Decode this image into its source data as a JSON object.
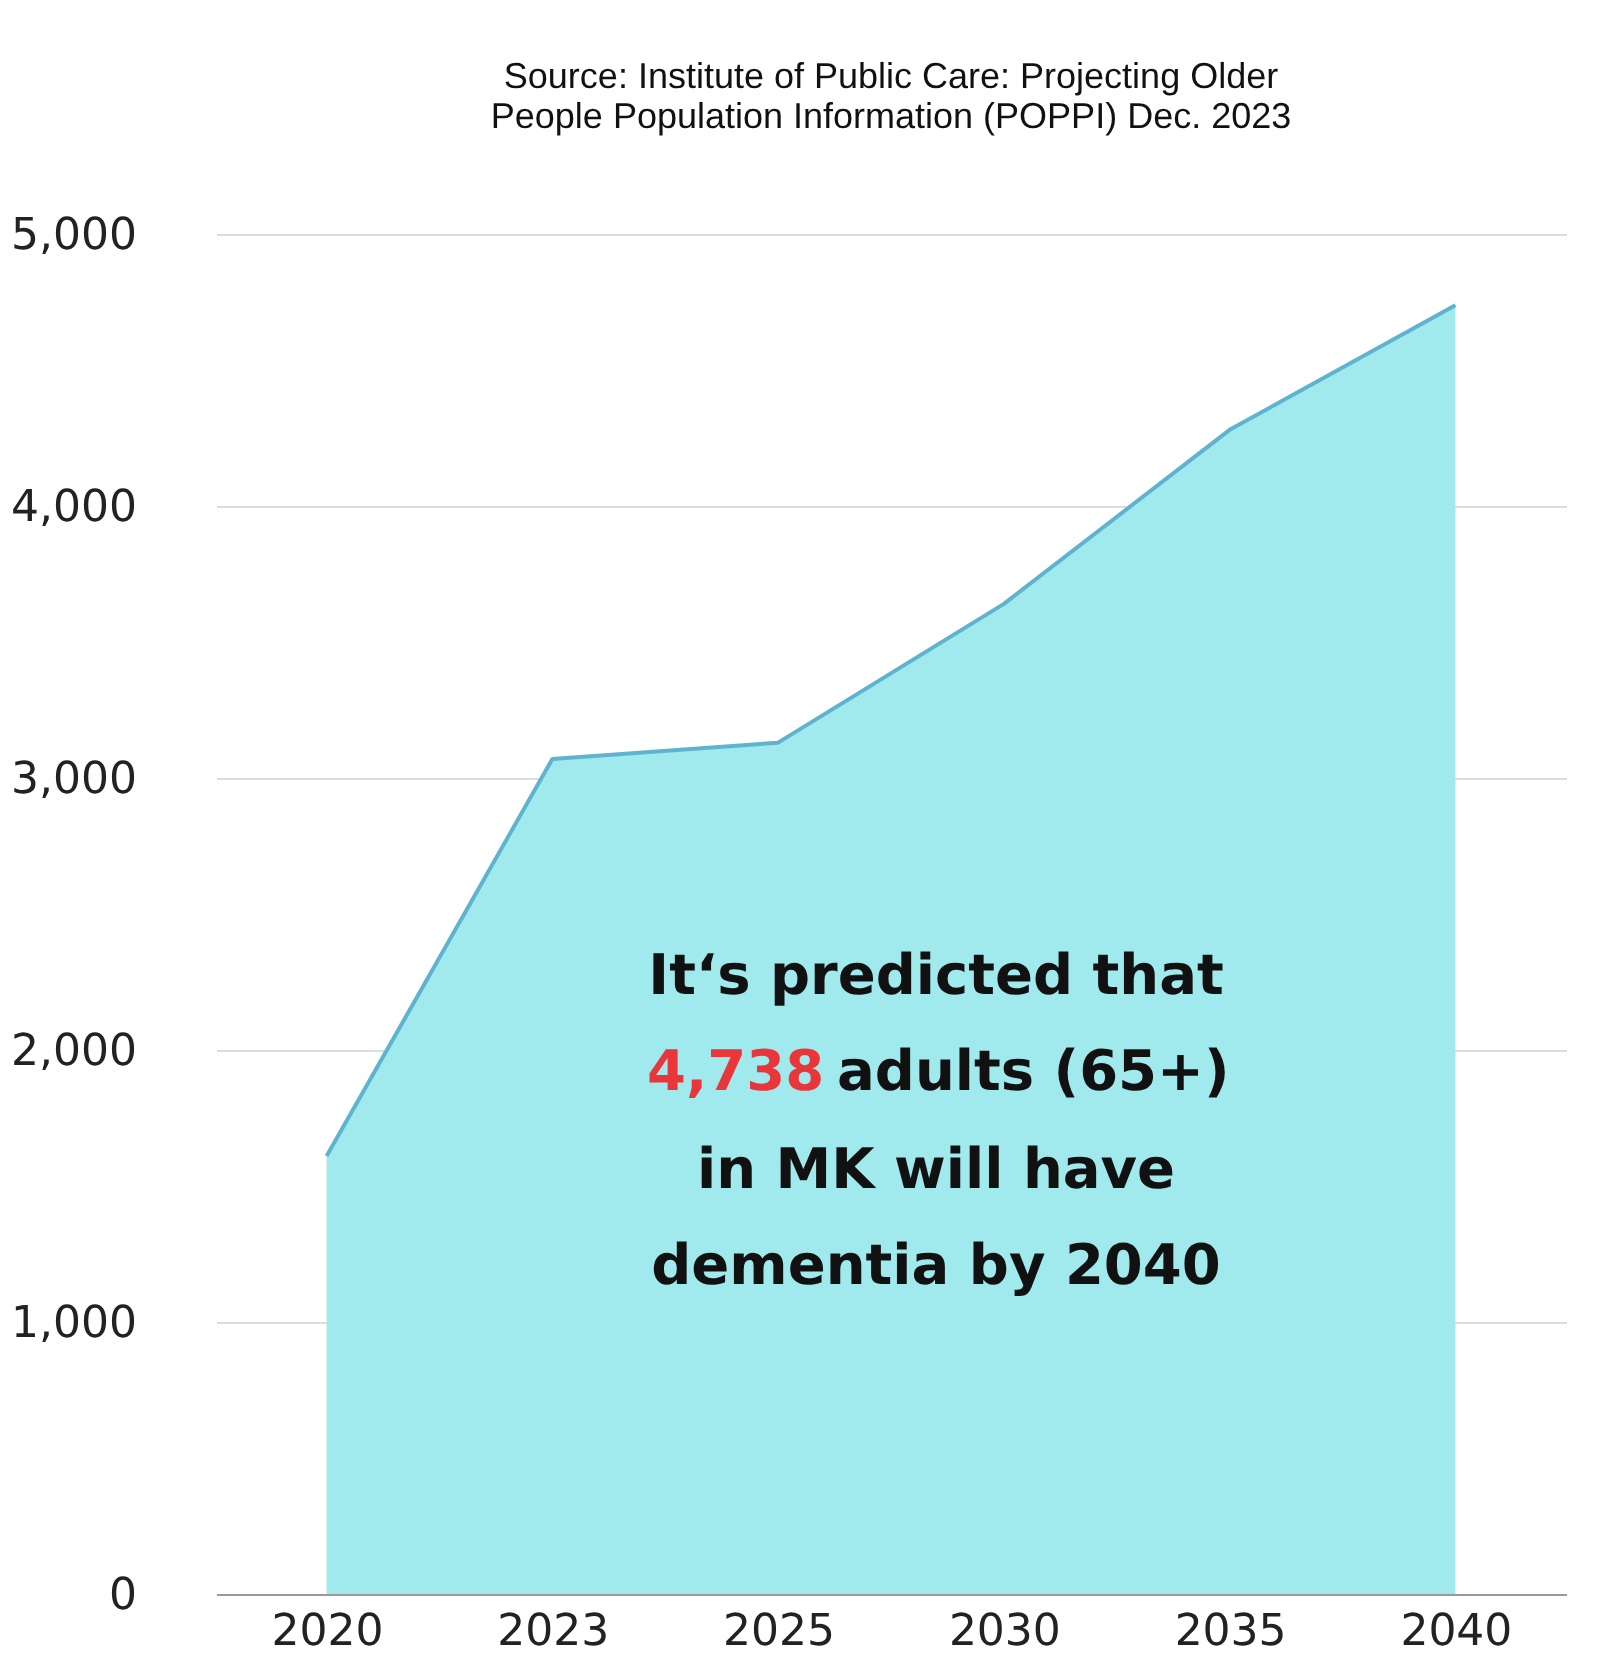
{
  "chart_data": {
    "type": "area",
    "title": "Source: Institute of Public Care: Projecting Older People Population Information (POPPI) Dec. 2023",
    "categories": [
      "2020",
      "2023",
      "2025",
      "2030",
      "2035",
      "2040"
    ],
    "series": [
      {
        "color": "#a0eaee",
        "values": [
          1610,
          3070,
          3130,
          3640,
          4280,
          4738
        ]
      }
    ],
    "ylim": [
      0,
      5000
    ],
    "yticks": [
      0,
      {
        "value": 1000,
        "label": "1,000"
      },
      {
        "value": 2000,
        "label": "2,000"
      },
      {
        "value": 3000,
        "label": "3,000"
      },
      {
        "value": 4000,
        "label": "4,000"
      },
      {
        "value": 5000,
        "label": "5,000"
      }
    ],
    "grid": "y",
    "annotations": [
      "It‘s predicted that",
      "4,738 adults (65+)",
      "in MK will have",
      "dementia by 2040"
    ]
  }
}
